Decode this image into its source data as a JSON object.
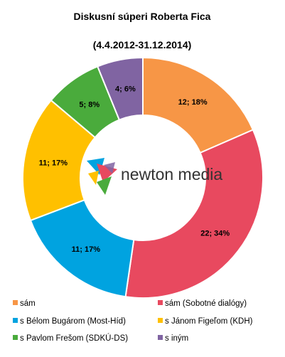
{
  "chart_data": {
    "type": "pie",
    "title": "Diskusní súperi Roberta Fica",
    "subtitle": "(4.4.2012-31.12.2014)",
    "slices": [
      {
        "name": "sám",
        "value": 12,
        "percent": "18%",
        "label": "12; 18%",
        "color": "#f79646"
      },
      {
        "name": "sám (Sobotné dialógy)",
        "value": 22,
        "percent": "34%",
        "label": "22; 34%",
        "color": "#e8495f"
      },
      {
        "name": "s Bélom Bugárom (Most-Híd)",
        "value": 11,
        "percent": "17%",
        "label": "11; 17%",
        "color": "#00a3e0"
      },
      {
        "name": "s Jánom Figeľom (KDH)",
        "value": 11,
        "percent": "17%",
        "label": "11; 17%",
        "color": "#ffc000"
      },
      {
        "name": "s Pavlom Frešom (SDKÚ-DS)",
        "value": 5,
        "percent": "8%",
        "label": "5; 8%",
        "color": "#4aab3c"
      },
      {
        "name": "s iným",
        "value": 4,
        "percent": "6%",
        "label": "4; 6%",
        "color": "#8064a2"
      }
    ],
    "legend_position": "bottom"
  },
  "logo": {
    "text": "newton media"
  }
}
